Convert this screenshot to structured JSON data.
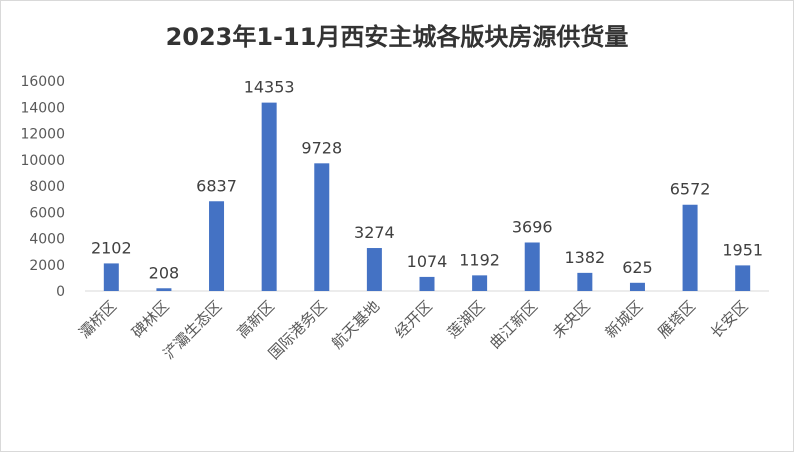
{
  "chart_data": {
    "type": "bar",
    "title": "2023年1-11月西安主城各版块房源供货量",
    "categories": [
      "灞桥区",
      "碑林区",
      "浐灞生态区",
      "高新区",
      "国际港务区",
      "航天基地",
      "经开区",
      "莲湖区",
      "曲江新区",
      "未央区",
      "新城区",
      "雁塔区",
      "长安区"
    ],
    "values": [
      2102,
      208,
      6837,
      14353,
      9728,
      3274,
      1074,
      1192,
      3696,
      1382,
      625,
      6572,
      1951
    ],
    "ylim": [
      0,
      16000
    ],
    "yticks": [
      0,
      2000,
      4000,
      6000,
      8000,
      10000,
      12000,
      14000,
      16000
    ],
    "xlabel": "",
    "ylabel": "",
    "grid": false,
    "bar_color": "#4472c4"
  }
}
